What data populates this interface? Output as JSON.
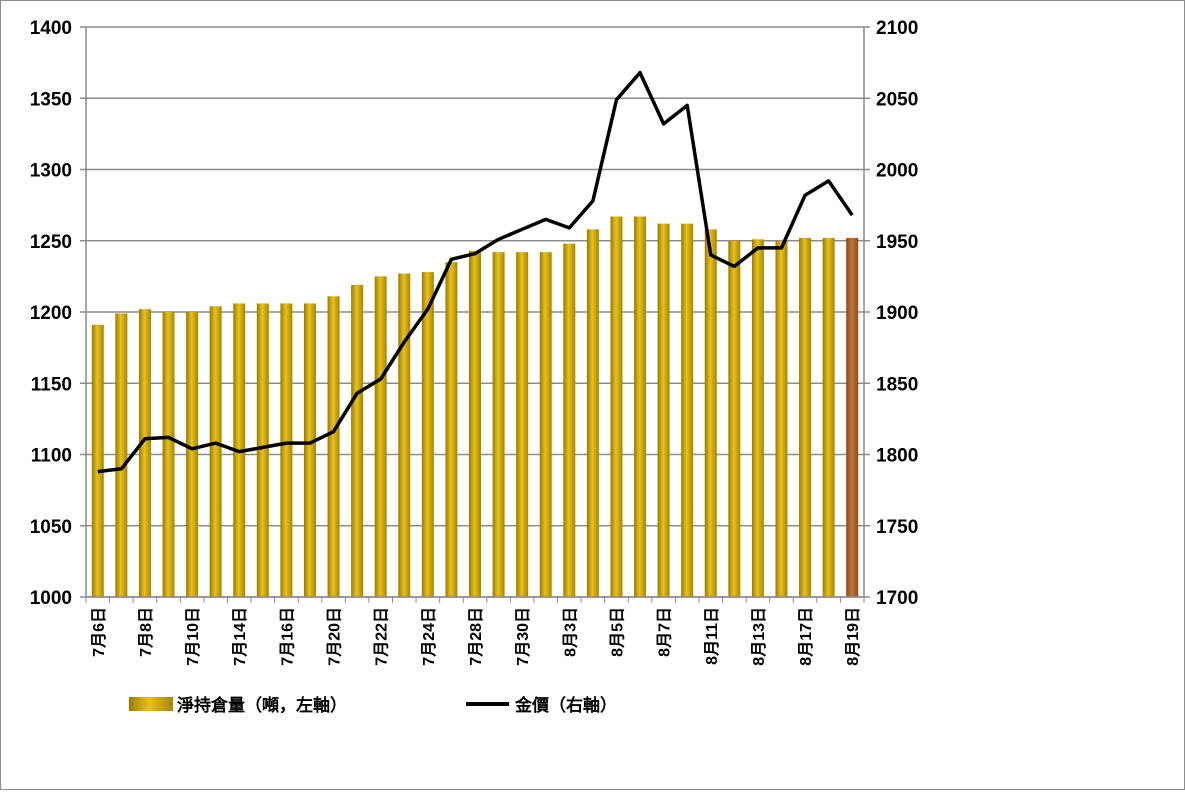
{
  "chart_data": {
    "type": "bar",
    "title": "",
    "categories": [
      "7月6日",
      "7月7日",
      "7月8日",
      "7月9日",
      "7月10日",
      "7月13日",
      "7月14日",
      "7月15日",
      "7月16日",
      "7月17日",
      "7月20日",
      "7月21日",
      "7月22日",
      "7月23日",
      "7月24日",
      "7月27日",
      "7月28日",
      "7月29日",
      "7月30日",
      "7月31日",
      "8月3日",
      "8月4日",
      "8月5日",
      "8月6日",
      "8月7日",
      "8月10日",
      "8月11日",
      "8月12日",
      "8月13日",
      "8月14日",
      "8月17日",
      "8月18日",
      "8月19日"
    ],
    "x_tick_labels": [
      "7月6日",
      "7月8日",
      "7月10日",
      "7月14日",
      "7月16日",
      "7月20日",
      "7月22日",
      "7月24日",
      "7月28日",
      "7月30日",
      "8月3日",
      "8月5日",
      "8月7日",
      "8月11日",
      "8月13日",
      "8月17日",
      "8月19日"
    ],
    "series": [
      {
        "name": "淨持倉量（噸，左軸）",
        "type": "bar",
        "axis": "left",
        "color": "#c9a000",
        "highlight_last_color": "#b5652a",
        "values": [
          1191,
          1199,
          1202,
          1200,
          1200,
          1204,
          1206,
          1206,
          1206,
          1206,
          1211,
          1219,
          1225,
          1227,
          1228,
          1235,
          1243,
          1242,
          1242,
          1242,
          1248,
          1258,
          1267,
          1267,
          1262,
          1262,
          1258,
          1250,
          1251,
          1250,
          1252,
          1252,
          1252
        ]
      },
      {
        "name": "金價（右軸）",
        "type": "line",
        "axis": "right",
        "color": "#000000",
        "values": [
          1788,
          1790,
          1811,
          1812,
          1804,
          1808,
          1802,
          1805,
          1808,
          1808,
          1816,
          1843,
          1853,
          1879,
          1902,
          1937,
          1941,
          1951,
          1958,
          1965,
          1959,
          1978,
          2049,
          2068,
          2032,
          2045,
          1940,
          1932,
          1945,
          1945,
          1982,
          1992,
          1968
        ]
      }
    ],
    "ylim_left": [
      1000,
      1400
    ],
    "yticks_left": [
      1000,
      1050,
      1100,
      1150,
      1200,
      1250,
      1300,
      1350,
      1400
    ],
    "ylim_right": [
      1700,
      2100
    ],
    "yticks_right": [
      1700,
      1750,
      1800,
      1850,
      1900,
      1950,
      2000,
      2050,
      2100
    ],
    "grid": true,
    "legend_position": "bottom"
  }
}
